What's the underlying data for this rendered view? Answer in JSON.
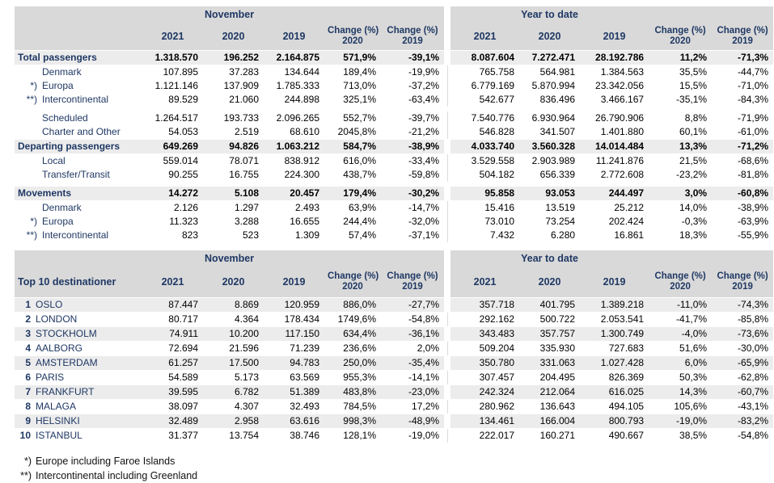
{
  "colors": {
    "navy": "#1F3864",
    "header_bg": "#D9D9D9",
    "band_bg": "#ECECEC",
    "text": "#000000"
  },
  "header": {
    "november": "November",
    "year_to_date": "Year to date",
    "years": [
      "2021",
      "2020",
      "2019"
    ],
    "change_label": "Change (%)",
    "change_years": [
      "2020",
      "2019"
    ]
  },
  "table1": {
    "rows": [
      {
        "type": "summary",
        "marker": "",
        "label": "Total passengers",
        "values": [
          "1.318.570",
          "196.252",
          "2.164.875",
          "571,9%",
          "-39,1%",
          "8.087.604",
          "7.272.471",
          "28.192.786",
          "11,2%",
          "-71,3%"
        ]
      },
      {
        "type": "detail",
        "marker": "",
        "label": "Denmark",
        "values": [
          "107.895",
          "37.283",
          "134.644",
          "189,4%",
          "-19,9%",
          "765.758",
          "564.981",
          "1.384.563",
          "35,5%",
          "-44,7%"
        ]
      },
      {
        "type": "detail",
        "marker": "*)",
        "label": "Europa",
        "values": [
          "1.121.146",
          "137.909",
          "1.785.333",
          "713,0%",
          "-37,2%",
          "6.779.169",
          "5.870.994",
          "23.342.056",
          "15,5%",
          "-71,0%"
        ]
      },
      {
        "type": "detail",
        "marker": "**)",
        "label": "Intercontinental",
        "values": [
          "89.529",
          "21.060",
          "244.898",
          "325,1%",
          "-63,4%",
          "542.677",
          "836.496",
          "3.466.167",
          "-35,1%",
          "-84,3%"
        ]
      },
      {
        "type": "gap"
      },
      {
        "type": "detail",
        "marker": "",
        "label": "Scheduled",
        "values": [
          "1.264.517",
          "193.733",
          "2.096.265",
          "552,7%",
          "-39,7%",
          "7.540.776",
          "6.930.964",
          "26.790.906",
          "8,8%",
          "-71,9%"
        ]
      },
      {
        "type": "detail",
        "marker": "",
        "label": "Charter and Other",
        "values": [
          "54.053",
          "2.519",
          "68.610",
          "2045,8%",
          "-21,2%",
          "546.828",
          "341.507",
          "1.401.880",
          "60,1%",
          "-61,0%"
        ]
      },
      {
        "type": "summary",
        "marker": "",
        "label": "Departing passengers",
        "values": [
          "649.269",
          "94.826",
          "1.063.212",
          "584,7%",
          "-38,9%",
          "4.033.740",
          "3.560.328",
          "14.014.484",
          "13,3%",
          "-71,2%"
        ]
      },
      {
        "type": "detail",
        "marker": "",
        "label": "Local",
        "values": [
          "559.014",
          "78.071",
          "838.912",
          "616,0%",
          "-33,4%",
          "3.529.558",
          "2.903.989",
          "11.241.876",
          "21,5%",
          "-68,6%"
        ]
      },
      {
        "type": "detail",
        "marker": "",
        "label": "Transfer/Transit",
        "values": [
          "90.255",
          "16.755",
          "224.300",
          "438,7%",
          "-59,8%",
          "504.182",
          "656.339",
          "2.772.608",
          "-23,2%",
          "-81,8%"
        ]
      },
      {
        "type": "gap"
      },
      {
        "type": "summary",
        "marker": "",
        "label": "Movements",
        "values": [
          "14.272",
          "5.108",
          "20.457",
          "179,4%",
          "-30,2%",
          "95.858",
          "93.053",
          "244.497",
          "3,0%",
          "-60,8%"
        ]
      },
      {
        "type": "detail",
        "marker": "",
        "label": "Denmark",
        "values": [
          "2.126",
          "1.297",
          "2.493",
          "63,9%",
          "-14,7%",
          "15.416",
          "13.519",
          "25.212",
          "14,0%",
          "-38,9%"
        ]
      },
      {
        "type": "detail",
        "marker": "*)",
        "label": "Europa",
        "values": [
          "11.323",
          "3.288",
          "16.655",
          "244,4%",
          "-32,0%",
          "73.010",
          "73.254",
          "202.424",
          "-0,3%",
          "-63,9%"
        ]
      },
      {
        "type": "detail",
        "marker": "**)",
        "label": "Intercontinental",
        "values": [
          "823",
          "523",
          "1.309",
          "57,4%",
          "-37,1%",
          "7.432",
          "6.280",
          "16.861",
          "18,3%",
          "-55,9%"
        ]
      }
    ]
  },
  "table2": {
    "title": "Top 10 destinationer",
    "rows": [
      {
        "type": "dest",
        "rank": "1",
        "label": "OSLO",
        "values": [
          "87.447",
          "8.869",
          "120.959",
          "886,0%",
          "-27,7%",
          "357.718",
          "401.795",
          "1.389.218",
          "-11,0%",
          "-74,3%"
        ]
      },
      {
        "type": "dest",
        "rank": "2",
        "label": "LONDON",
        "values": [
          "80.717",
          "4.364",
          "178.434",
          "1749,6%",
          "-54,8%",
          "292.162",
          "500.722",
          "2.053.541",
          "-41,7%",
          "-85,8%"
        ]
      },
      {
        "type": "dest",
        "rank": "3",
        "label": "STOCKHOLM",
        "values": [
          "74.911",
          "10.200",
          "117.150",
          "634,4%",
          "-36,1%",
          "343.483",
          "357.757",
          "1.300.749",
          "-4,0%",
          "-73,6%"
        ]
      },
      {
        "type": "dest",
        "rank": "4",
        "label": "AALBORG",
        "values": [
          "72.694",
          "21.596",
          "71.239",
          "236,6%",
          "2,0%",
          "509.204",
          "335.930",
          "727.683",
          "51,6%",
          "-30,0%"
        ]
      },
      {
        "type": "dest",
        "rank": "5",
        "label": "AMSTERDAM",
        "values": [
          "61.257",
          "17.500",
          "94.783",
          "250,0%",
          "-35,4%",
          "350.780",
          "331.063",
          "1.027.428",
          "6,0%",
          "-65,9%"
        ]
      },
      {
        "type": "dest",
        "rank": "6",
        "label": "PARIS",
        "values": [
          "54.589",
          "5.173",
          "63.569",
          "955,3%",
          "-14,1%",
          "307.457",
          "204.495",
          "826.369",
          "50,3%",
          "-62,8%"
        ]
      },
      {
        "type": "dest",
        "rank": "7",
        "label": "FRANKFURT",
        "values": [
          "39.595",
          "6.782",
          "51.389",
          "483,8%",
          "-23,0%",
          "242.324",
          "212.064",
          "616.025",
          "14,3%",
          "-60,7%"
        ]
      },
      {
        "type": "dest",
        "rank": "8",
        "label": "MALAGA",
        "values": [
          "38.097",
          "4.307",
          "32.493",
          "784,5%",
          "17,2%",
          "280.962",
          "136.643",
          "494.105",
          "105,6%",
          "-43,1%"
        ]
      },
      {
        "type": "dest",
        "rank": "9",
        "label": "HELSINKI",
        "values": [
          "32.489",
          "2.958",
          "63.616",
          "998,3%",
          "-48,9%",
          "134.461",
          "166.004",
          "800.793",
          "-19,0%",
          "-83,2%"
        ]
      },
      {
        "type": "dest",
        "rank": "10",
        "label": "ISTANBUL",
        "values": [
          "31.377",
          "13.754",
          "38.746",
          "128,1%",
          "-19,0%",
          "222.017",
          "160.271",
          "490.667",
          "38,5%",
          "-54,8%"
        ]
      }
    ]
  },
  "footnotes": [
    {
      "marker": "*)",
      "text": "Europe including Faroe Islands"
    },
    {
      "marker": "**)",
      "text": "Intercontinental including Greenland"
    }
  ]
}
